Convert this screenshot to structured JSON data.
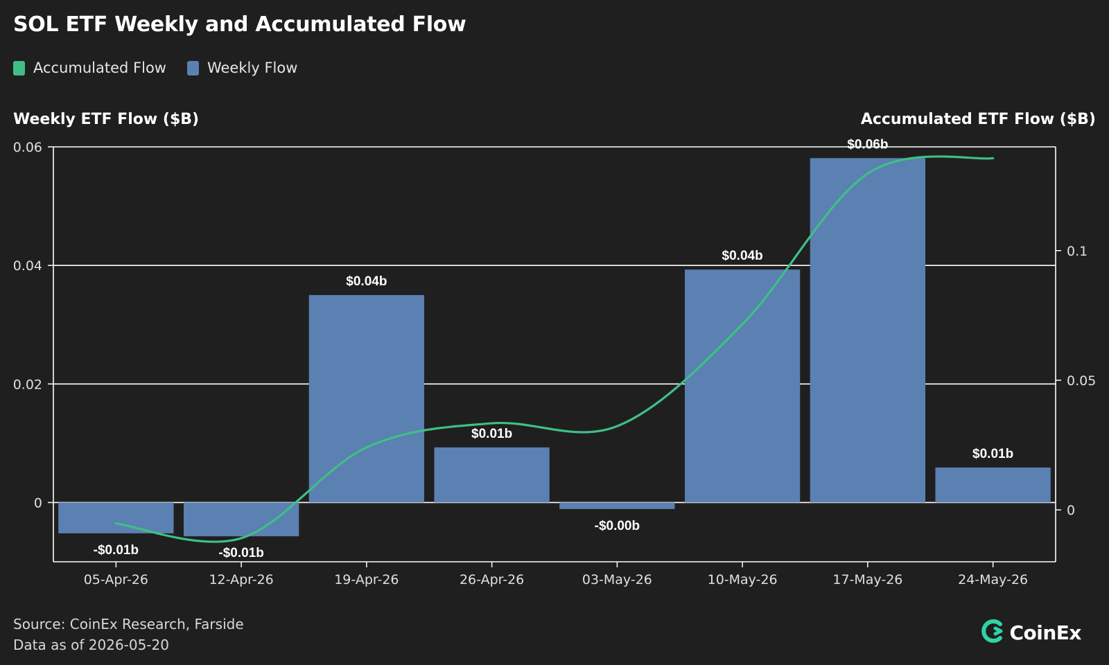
{
  "title": "SOL ETF Weekly and Accumulated Flow",
  "legend": [
    {
      "label": "Accumulated Flow",
      "color": "#3fbf86"
    },
    {
      "label": "Weekly Flow",
      "color": "#5b80b2"
    }
  ],
  "left_axis_title": "Weekly ETF Flow ($B)",
  "right_axis_title": "Accumulated ETF Flow ($B)",
  "footer": {
    "source": "Source: CoinEx Research, Farside",
    "data_as_of": "Data as of 2026-05-20"
  },
  "brand": {
    "name": "CoinEx",
    "icon": "coinex-logo-icon",
    "color": "#2ed3a6"
  },
  "chart_data": {
    "type": "bar",
    "title": "SOL ETF Weekly and Accumulated Flow",
    "ylabel": "Weekly ETF Flow ($B)",
    "y2label": "Accumulated ETF Flow ($B)",
    "categories": [
      "05-Apr-26",
      "12-Apr-26",
      "19-Apr-26",
      "26-Apr-26",
      "03-May-26",
      "10-May-26",
      "17-May-26",
      "24-May-26"
    ],
    "ylim": [
      -0.01,
      0.06
    ],
    "y_ticks": [
      0,
      0.02,
      0.04,
      0.06
    ],
    "y_tick_labels": [
      "0",
      "0.02",
      "0.04",
      "0.06"
    ],
    "y2lim": [
      -0.02,
      0.14
    ],
    "y2_ticks": [
      0,
      0.05,
      0.1
    ],
    "y2_tick_labels": [
      "0",
      "0.05",
      "0.1"
    ],
    "grid": true,
    "legend_position": "top-left",
    "series": [
      {
        "name": "Weekly Flow",
        "type": "bar",
        "axis": "left",
        "color": "#5b80b2",
        "values": [
          -0.0052,
          -0.0057,
          0.035,
          0.0093,
          -0.0011,
          0.0393,
          0.0581,
          0.0059
        ],
        "data_labels": [
          "-$0.01b",
          "-$0.01b",
          "$0.04b",
          "$0.01b",
          "-$0.00b",
          "$0.04b",
          "$0.06b",
          "$0.01b"
        ]
      },
      {
        "name": "Accumulated Flow",
        "type": "line",
        "axis": "right",
        "color": "#3fbf86",
        "values": [
          -0.0052,
          -0.0109,
          0.0241,
          0.0334,
          0.0323,
          0.0716,
          0.1297,
          0.1356
        ]
      }
    ]
  }
}
